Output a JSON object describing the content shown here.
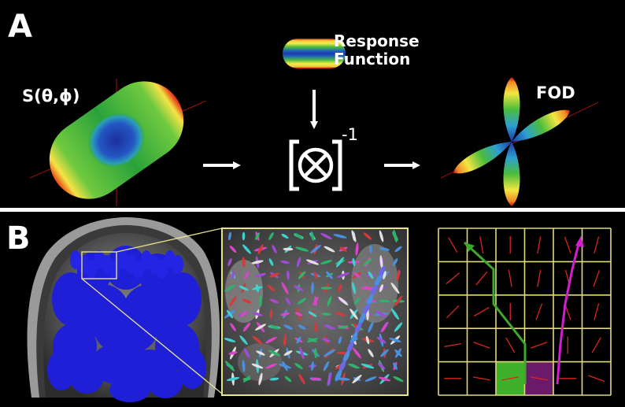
{
  "panel_a": {
    "label": "A",
    "signal_label": "S(θ,ϕ)",
    "response_label_line1": "Response",
    "response_label_line2": "Function",
    "inverse_exponent": "-1",
    "fod_label": "FOD"
  },
  "panel_b": {
    "label": "B",
    "grid_rows": 5,
    "grid_cols": 6,
    "tract_colors": {
      "green": "#3fa82c",
      "magenta": "#d21ecf"
    },
    "seed_colors": {
      "green": "#3fb02a",
      "purple": "#6b1a6b"
    }
  },
  "colors": {
    "background": "#000000",
    "divider": "#ffffff",
    "zoom_box": "#e9e38f",
    "grid_line": "#e2d97a",
    "fod_line": "#d8261e"
  }
}
